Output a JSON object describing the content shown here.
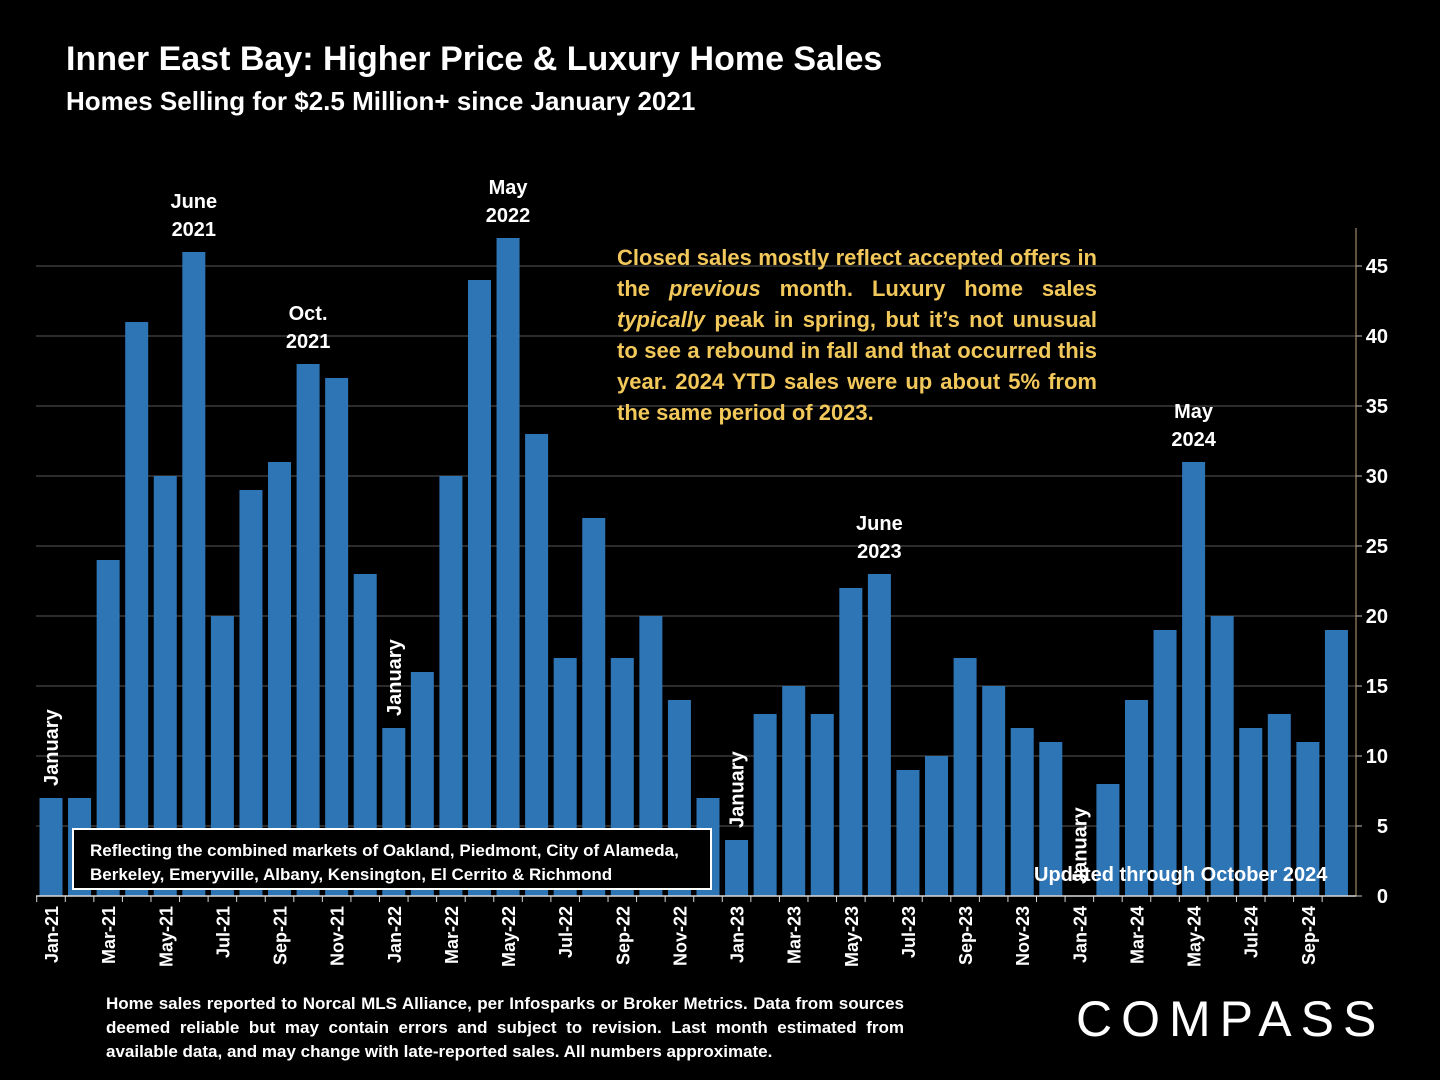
{
  "title": "Inner East Bay: Higher Price & Luxury Home Sales",
  "subtitle": "Homes Selling for $2.5 Million+ since January 2021",
  "annotation": {
    "part1": "Closed sales mostly reflect accepted offers in the ",
    "em1": "previous",
    "part2": " month. Luxury home sales ",
    "em2": "typically",
    "part3": " peak in spring, but it’s not unusual to see a rebound in fall and that occurred this year. 2024 YTD sales were up about 5% from the same period of 2023."
  },
  "markets_note": "Reflecting the combined markets of Oakland, Piedmont, City of Alameda, Berkeley, Emeryville, Albany, Kensington, El Cerrito & Richmond",
  "updated_note": "Updated through October 2024",
  "footnote": "Home sales reported to Norcal MLS Alliance, per Infosparks or Broker Metrics. Data from sources deemed reliable but may contain errors and subject to revision.  Last month estimated from available data, and may change with late-reported sales. All numbers approximate.",
  "brand": "COMPASS",
  "chart_data": {
    "type": "bar",
    "bar_color": "#2e75b6",
    "ylim": [
      0,
      48
    ],
    "yticks": [
      0,
      5,
      10,
      15,
      20,
      25,
      30,
      35,
      40,
      45
    ],
    "y_axis_side": "right",
    "grid": true,
    "categories": [
      "Jan-21",
      "Feb-21",
      "Mar-21",
      "Apr-21",
      "May-21",
      "Jun-21",
      "Jul-21",
      "Aug-21",
      "Sep-21",
      "Oct-21",
      "Nov-21",
      "Dec-21",
      "Jan-22",
      "Feb-22",
      "Mar-22",
      "Apr-22",
      "May-22",
      "Jun-22",
      "Jul-22",
      "Aug-22",
      "Sep-22",
      "Oct-22",
      "Nov-22",
      "Dec-22",
      "Jan-23",
      "Feb-23",
      "Mar-23",
      "Apr-23",
      "May-23",
      "Jun-23",
      "Jul-23",
      "Aug-23",
      "Sep-23",
      "Oct-23",
      "Nov-23",
      "Dec-23",
      "Jan-24",
      "Feb-24",
      "Mar-24",
      "Apr-24",
      "May-24",
      "Jun-24",
      "Jul-24",
      "Aug-24",
      "Sep-24",
      "Oct-24"
    ],
    "values": [
      7,
      7,
      24,
      41,
      30,
      46,
      20,
      29,
      31,
      38,
      37,
      23,
      12,
      16,
      30,
      44,
      47,
      33,
      17,
      27,
      17,
      20,
      14,
      7,
      4,
      13,
      15,
      13,
      22,
      23,
      9,
      10,
      17,
      15,
      12,
      11,
      0,
      8,
      14,
      19,
      31,
      20,
      12,
      13,
      11,
      19
    ],
    "shown_tick_labels": [
      "Jan-21",
      "Mar-21",
      "May-21",
      "Jul-21",
      "Sep-21",
      "Nov-21",
      "Jan-22",
      "Mar-22",
      "May-22",
      "Jul-22",
      "Sep-22",
      "Nov-22",
      "Jan-23",
      "Mar-23",
      "May-23",
      "Jul-23",
      "Sep-23",
      "Nov-23",
      "Jan-24",
      "Mar-24",
      "May-24",
      "Jul-24",
      "Sep-24"
    ],
    "peak_labels": [
      {
        "index": 5,
        "lines": [
          "June",
          "2021"
        ]
      },
      {
        "index": 9,
        "lines": [
          "Oct.",
          "2021"
        ]
      },
      {
        "index": 16,
        "lines": [
          "May",
          "2022"
        ]
      },
      {
        "index": 29,
        "lines": [
          "June",
          "2023"
        ]
      },
      {
        "index": 40,
        "lines": [
          "May",
          "2024"
        ]
      }
    ],
    "january_labels": [
      {
        "index": 0,
        "text": "January"
      },
      {
        "index": 12,
        "text": "January"
      },
      {
        "index": 24,
        "text": "January"
      },
      {
        "index": 36,
        "text": "January"
      }
    ]
  }
}
